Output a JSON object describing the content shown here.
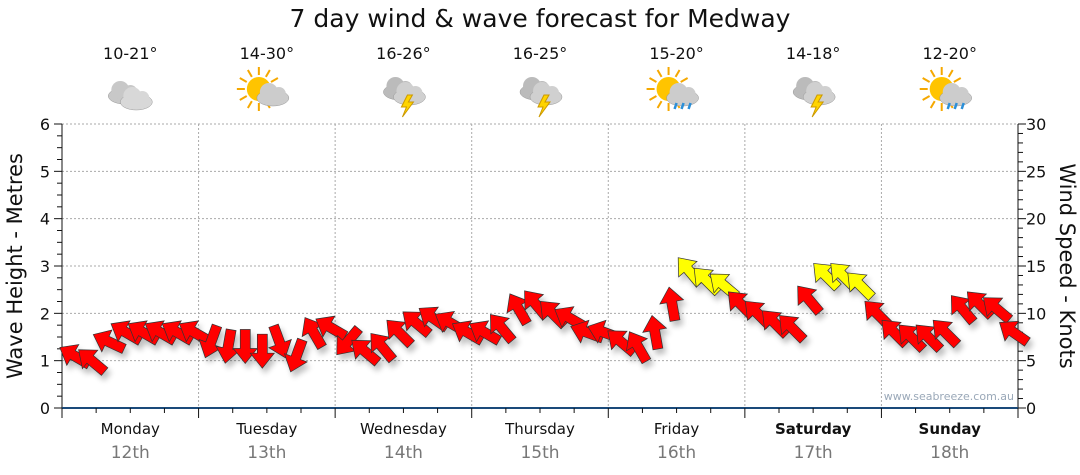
{
  "title": "7 day wind & wave forecast for Medway",
  "days": [
    {
      "name": "Monday",
      "date": "12th",
      "temp": "10-21°",
      "icon": "cloudy-icon",
      "weekend": false
    },
    {
      "name": "Tuesday",
      "date": "13th",
      "temp": "14-30°",
      "icon": "sun-cloud-icon",
      "weekend": false
    },
    {
      "name": "Wednesday",
      "date": "14th",
      "temp": "16-26°",
      "icon": "storm-icon",
      "weekend": false
    },
    {
      "name": "Thursday",
      "date": "15th",
      "temp": "16-25°",
      "icon": "storm-icon",
      "weekend": false
    },
    {
      "name": "Friday",
      "date": "16th",
      "temp": "15-20°",
      "icon": "sun-rain-icon",
      "weekend": false
    },
    {
      "name": "Saturday",
      "date": "17th",
      "temp": "14-18°",
      "icon": "storm-icon",
      "weekend": true
    },
    {
      "name": "Sunday",
      "date": "18th",
      "temp": "12-20°",
      "icon": "sun-rain-icon",
      "weekend": true
    }
  ],
  "watermark": "www.seabreeze.com.au",
  "chart_data": {
    "type": "scatter",
    "title": "7 day wind & wave forecast for Medway",
    "ylabel": "Wave Height - Metres",
    "y2label": "Wind Speed - Knots",
    "ylim": [
      0,
      6
    ],
    "y2lim": [
      0,
      30
    ],
    "yticks": [
      "0",
      "1",
      "2",
      "3",
      "4",
      "5",
      "6"
    ],
    "y2ticks": [
      "0",
      "5",
      "10",
      "15",
      "20",
      "25",
      "30"
    ],
    "grid": true,
    "interval_hours": 3,
    "strong_wind_threshold_knots": 12.5,
    "colors": {
      "normal": "#ff0000",
      "strong": "#ffff00"
    },
    "wind_speed_knots": [
      5.5,
      5,
      7,
      8,
      8,
      8,
      8,
      8,
      7,
      6.5,
      6.5,
      6,
      7,
      5.5,
      8,
      8.5,
      7,
      6,
      6.5,
      8,
      9,
      9.5,
      9,
      8,
      8,
      8.5,
      10.5,
      11,
      10,
      9.5,
      8,
      8,
      7,
      6.5,
      8,
      11,
      14.5,
      13.5,
      13,
      11,
      10,
      9,
      8.5,
      11.5,
      14,
      14,
      13,
      10,
      8,
      7.5,
      7.5,
      8,
      10.5,
      11,
      10.5,
      8
    ],
    "wind_heading_deg": [
      300,
      310,
      295,
      300,
      300,
      300,
      300,
      300,
      200,
      190,
      180,
      180,
      160,
      200,
      330,
      300,
      220,
      310,
      320,
      315,
      310,
      305,
      300,
      300,
      300,
      320,
      330,
      320,
      315,
      300,
      290,
      290,
      310,
      330,
      350,
      350,
      320,
      315,
      310,
      315,
      315,
      315,
      315,
      320,
      315,
      315,
      315,
      315,
      315,
      315,
      315,
      315,
      320,
      315,
      310,
      305
    ]
  }
}
